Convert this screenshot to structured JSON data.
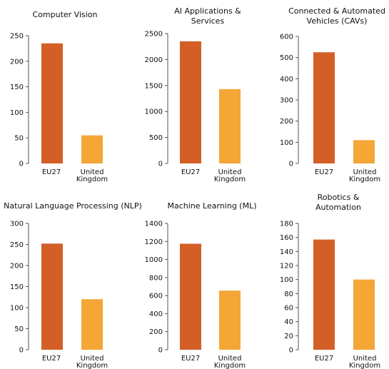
{
  "chart_data": [
    {
      "type": "bar",
      "title_lines": [
        "Computer Vision"
      ],
      "categories": [
        [
          "EU27"
        ],
        [
          "United",
          "Kingdom"
        ]
      ],
      "values": [
        235,
        55
      ],
      "ylim": [
        0,
        250
      ],
      "yticks": [
        0,
        50,
        100,
        150,
        200,
        250
      ],
      "xlabel": "",
      "ylabel": "",
      "grid": false
    },
    {
      "type": "bar",
      "title_lines": [
        "AI Applications &",
        "Services"
      ],
      "categories": [
        [
          "EU27"
        ],
        [
          "United",
          "Kingdom"
        ]
      ],
      "values": [
        2350,
        1430
      ],
      "ylim": [
        0,
        2500
      ],
      "yticks": [
        0,
        500,
        1000,
        1500,
        2000,
        2500
      ],
      "xlabel": "",
      "ylabel": "",
      "grid": false
    },
    {
      "type": "bar",
      "title_lines": [
        "Connected & Automated",
        "Vehicles (CAVs)"
      ],
      "categories": [
        [
          "EU27"
        ],
        [
          "United",
          "Kingdom"
        ]
      ],
      "values": [
        525,
        110
      ],
      "ylim": [
        0,
        600
      ],
      "yticks": [
        0,
        100,
        200,
        300,
        400,
        500,
        600
      ],
      "xlabel": "",
      "ylabel": "",
      "grid": false
    },
    {
      "type": "bar",
      "title_lines": [
        "Natural Language Processing (NLP)"
      ],
      "categories": [
        [
          "EU27"
        ],
        [
          "United",
          "Kingdom"
        ]
      ],
      "values": [
        252,
        120
      ],
      "ylim": [
        0,
        300
      ],
      "yticks": [
        0,
        50,
        100,
        150,
        200,
        250,
        300
      ],
      "xlabel": "",
      "ylabel": "",
      "grid": false
    },
    {
      "type": "bar",
      "title_lines": [
        "Machine Learning (ML)"
      ],
      "categories": [
        [
          "EU27"
        ],
        [
          "United",
          "Kingdom"
        ]
      ],
      "values": [
        1175,
        655
      ],
      "ylim": [
        0,
        1400
      ],
      "yticks": [
        0,
        200,
        400,
        600,
        800,
        1000,
        1200,
        1400
      ],
      "xlabel": "",
      "ylabel": "",
      "grid": false
    },
    {
      "type": "bar",
      "title_lines": [
        "Robotics &",
        "Automation"
      ],
      "categories": [
        [
          "EU27"
        ],
        [
          "United",
          "Kingdom"
        ]
      ],
      "values": [
        157,
        100
      ],
      "ylim": [
        0,
        180
      ],
      "yticks": [
        0,
        20,
        40,
        60,
        80,
        100,
        120,
        140,
        160,
        180
      ],
      "xlabel": "",
      "ylabel": "",
      "grid": false
    }
  ],
  "colors": {
    "EU27": "#D35F27",
    "United Kingdom": "#F4A637"
  }
}
